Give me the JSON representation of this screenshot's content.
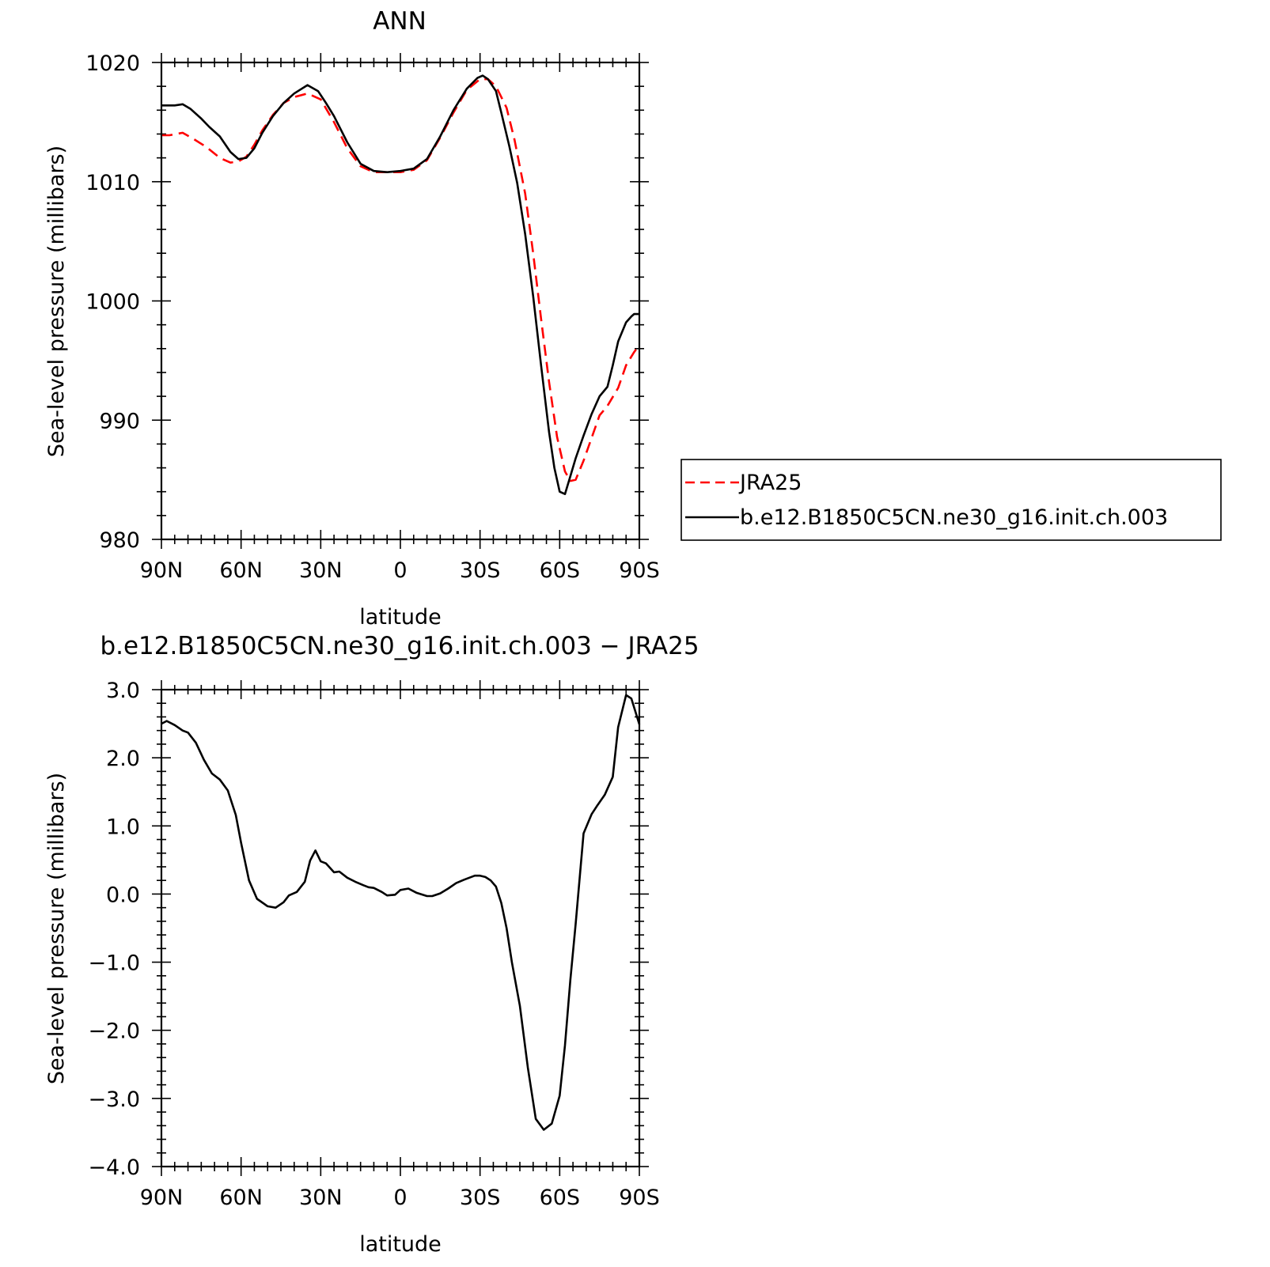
{
  "chart_data": [
    {
      "type": "line",
      "title": "ANN",
      "xlabel": "latitude",
      "ylabel": "Sea-level pressure (millibars)",
      "xlim": [
        -90,
        90
      ],
      "ylim": [
        980,
        1020
      ],
      "xticks": [
        -90,
        -60,
        -30,
        0,
        30,
        60,
        90
      ],
      "xtick_labels": [
        "90N",
        "60N",
        "30N",
        "0",
        "30S",
        "60S",
        "90S"
      ],
      "yticks": [
        980,
        990,
        1000,
        1010,
        1020
      ],
      "ytick_labels": [
        "980",
        "990",
        "1000",
        "1010",
        "1020"
      ],
      "grid": false,
      "legend": {
        "placement": "right, outside the plot",
        "entries": [
          "JRA25",
          "b.e12.B1850C5CN.ne30_g16.init.ch.003"
        ]
      },
      "series": [
        {
          "name": "JRA25",
          "color": "#ff0000",
          "dash": "dashed",
          "x": [
            -90,
            -87,
            -82,
            -78,
            -73,
            -68,
            -64,
            -61,
            -58,
            -55,
            -52,
            -48,
            -44,
            -40,
            -35,
            -30,
            -25,
            -20,
            -15,
            -10,
            -5,
            0,
            5,
            10,
            15,
            20,
            25,
            30,
            33,
            36,
            40,
            43,
            47,
            50,
            53,
            56,
            59,
            62,
            64,
            66,
            69,
            72,
            75,
            78,
            82,
            85,
            88,
            90
          ],
          "y": [
            1013.9,
            1013.9,
            1014.1,
            1013.6,
            1012.9,
            1012.0,
            1011.6,
            1011.7,
            1012.1,
            1013.1,
            1014.3,
            1015.6,
            1016.6,
            1017.1,
            1017.4,
            1016.9,
            1015.0,
            1012.8,
            1011.3,
            1010.8,
            1010.8,
            1010.8,
            1011.0,
            1011.8,
            1013.7,
            1015.8,
            1017.7,
            1018.6,
            1018.6,
            1018.0,
            1016.2,
            1013.5,
            1009.0,
            1004.0,
            998.5,
            993.2,
            988.6,
            985.7,
            984.9,
            985.0,
            986.6,
            988.5,
            990.4,
            991.2,
            992.7,
            994.6,
            995.7,
            996.3
          ]
        },
        {
          "name": "b.e12.B1850C5CN.ne30_g16.init.ch.003",
          "color": "#000000",
          "dash": "solid",
          "x": [
            -90,
            -85,
            -82,
            -79,
            -75,
            -72,
            -68,
            -64,
            -61,
            -58,
            -55,
            -52,
            -48,
            -44,
            -40,
            -35,
            -31,
            -28,
            -25,
            -20,
            -15,
            -10,
            -5,
            0,
            5,
            10,
            15,
            20,
            25,
            29,
            31,
            33,
            36,
            38,
            41,
            44,
            47,
            50,
            53,
            56,
            58,
            60,
            62,
            64,
            66,
            69,
            72,
            75,
            78,
            80,
            82,
            85,
            87,
            88,
            90
          ],
          "y": [
            1016.4,
            1016.4,
            1016.5,
            1016.1,
            1015.3,
            1014.6,
            1013.8,
            1012.5,
            1011.9,
            1012.0,
            1012.8,
            1014.1,
            1015.5,
            1016.6,
            1017.4,
            1018.1,
            1017.6,
            1016.6,
            1015.5,
            1013.3,
            1011.5,
            1010.9,
            1010.8,
            1010.9,
            1011.1,
            1011.9,
            1013.8,
            1016.0,
            1017.8,
            1018.7,
            1018.9,
            1018.6,
            1017.6,
            1015.8,
            1013.0,
            1009.9,
            1005.6,
            1000.4,
            994.6,
            989.0,
            986.0,
            984.0,
            983.8,
            985.3,
            986.8,
            988.7,
            990.5,
            992.0,
            992.8,
            994.6,
            996.6,
            998.2,
            998.7,
            998.9,
            998.9
          ]
        }
      ]
    },
    {
      "type": "line",
      "title": "b.e12.B1850C5CN.ne30_g16.init.ch.003 − JRA25",
      "xlabel": "latitude",
      "ylabel": "Sea-level pressure (millibars)",
      "xlim": [
        -90,
        90
      ],
      "ylim": [
        -4.0,
        3.0
      ],
      "xticks": [
        -90,
        -60,
        -30,
        0,
        30,
        60,
        90
      ],
      "xtick_labels": [
        "90N",
        "60N",
        "30N",
        "0",
        "30S",
        "60S",
        "90S"
      ],
      "yticks": [
        -4.0,
        -3.0,
        -2.0,
        -1.0,
        0.0,
        1.0,
        2.0,
        3.0
      ],
      "ytick_labels": [
        "−4.0",
        "−3.0",
        "−2.0",
        "−1.0",
        "0.0",
        "1.0",
        "2.0",
        "3.0"
      ],
      "grid": false,
      "series": [
        {
          "color": "#000000",
          "dash": "solid",
          "x": [
            -90,
            -88,
            -85,
            -82,
            -80,
            -77,
            -74,
            -71,
            -68,
            -65,
            -62,
            -60,
            -57,
            -54,
            -50,
            -47,
            -44,
            -42,
            -39,
            -36,
            -34,
            -32,
            -30,
            -28,
            -25,
            -23,
            -20,
            -17,
            -14,
            -12,
            -10,
            -7,
            -5,
            -2,
            0,
            3,
            6,
            10,
            12,
            15,
            18,
            21,
            24,
            28,
            30,
            32,
            34,
            36,
            38,
            40,
            42,
            45,
            48,
            51,
            54,
            57,
            60,
            62,
            64,
            66,
            69,
            72,
            74,
            77,
            80,
            82,
            85,
            87,
            90
          ],
          "y": [
            2.5,
            2.54,
            2.48,
            2.4,
            2.37,
            2.22,
            1.97,
            1.77,
            1.68,
            1.52,
            1.16,
            0.75,
            0.2,
            -0.07,
            -0.18,
            -0.2,
            -0.12,
            -0.02,
            0.03,
            0.18,
            0.49,
            0.64,
            0.48,
            0.45,
            0.32,
            0.33,
            0.24,
            0.18,
            0.13,
            0.1,
            0.09,
            0.03,
            -0.02,
            -0.01,
            0.06,
            0.08,
            0.02,
            -0.03,
            -0.03,
            0.01,
            0.08,
            0.16,
            0.21,
            0.27,
            0.27,
            0.25,
            0.2,
            0.11,
            -0.13,
            -0.5,
            -1.0,
            -1.64,
            -2.55,
            -3.3,
            -3.46,
            -3.37,
            -2.96,
            -2.22,
            -1.26,
            -0.44,
            0.89,
            1.17,
            1.29,
            1.46,
            1.72,
            2.45,
            2.92,
            2.87,
            2.49
          ]
        }
      ]
    }
  ]
}
